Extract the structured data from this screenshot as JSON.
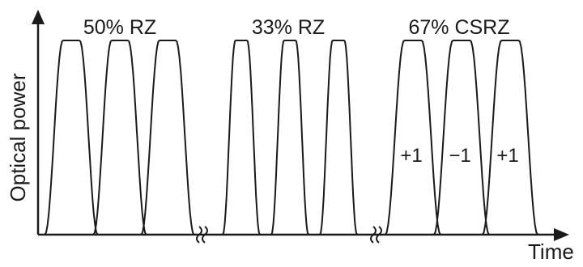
{
  "axes": {
    "y_label": "Optical power",
    "x_label": "Time"
  },
  "groups": [
    {
      "format": "50% RZ",
      "duty_cycle": 0.5,
      "pulse_count": 3,
      "phase_labels": []
    },
    {
      "format": "33% RZ",
      "duty_cycle": 0.33,
      "pulse_count": 3,
      "phase_labels": []
    },
    {
      "format": "67% CSRZ",
      "duty_cycle": 0.67,
      "pulse_count": 3,
      "phase_labels": [
        "+1",
        "−1",
        "+1"
      ]
    }
  ],
  "colors": {
    "stroke": "#1a1a1a",
    "background": "#ffffff"
  }
}
